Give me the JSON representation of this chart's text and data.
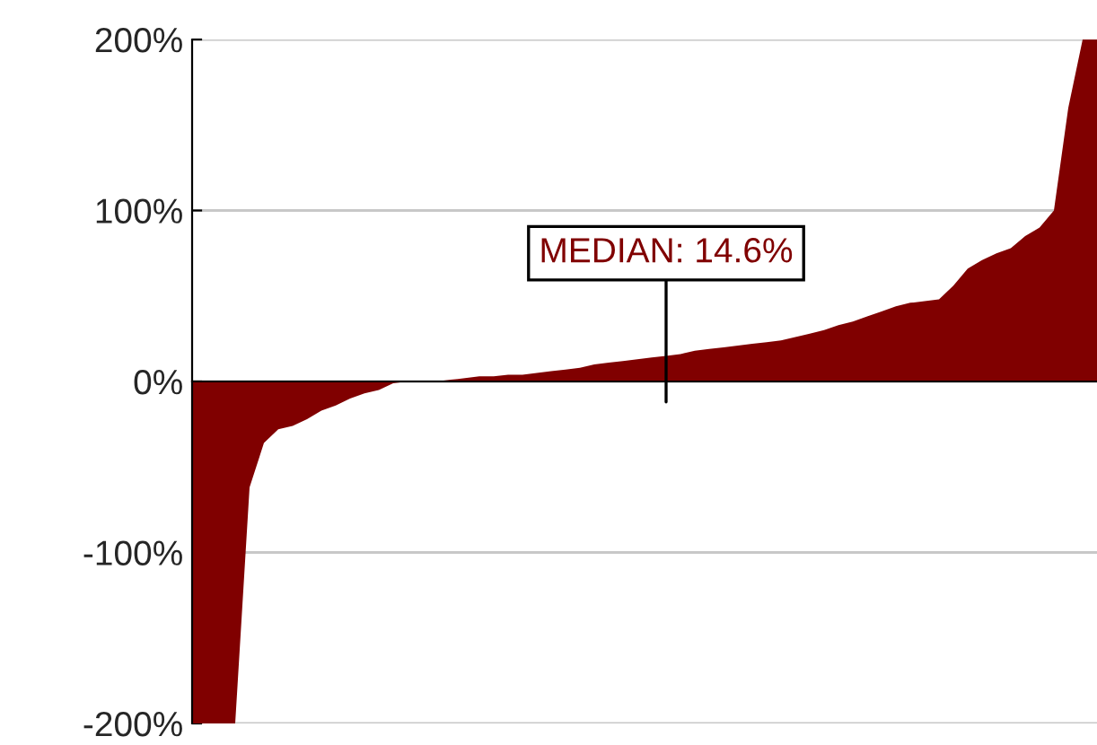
{
  "chart_data": {
    "type": "area",
    "categories": [
      null,
      null,
      null,
      null,
      null,
      null,
      null,
      null,
      null,
      null,
      null,
      null,
      null,
      null,
      null,
      null,
      null,
      null,
      null,
      null,
      null,
      null,
      null,
      null,
      null,
      null,
      null,
      null,
      null,
      null,
      null,
      null,
      null,
      null,
      null,
      null,
      null,
      null,
      null,
      null,
      null,
      null,
      null,
      null,
      null,
      null,
      null,
      null,
      null,
      null,
      null,
      null,
      null,
      null,
      null,
      null,
      null,
      null,
      null,
      null,
      null,
      null,
      null,
      null
    ],
    "series": [
      {
        "color": "#800000",
        "values": [
          -200,
          -200,
          -200,
          -200,
          -62,
          -36,
          -28,
          -26,
          -22,
          -17,
          -14,
          -10,
          -7,
          -5,
          -1,
          0,
          0,
          0,
          1,
          2,
          3,
          3,
          4,
          4,
          5,
          6,
          7,
          8,
          10,
          11,
          12,
          13,
          14,
          15,
          16,
          18,
          19,
          20,
          21,
          22,
          23,
          24,
          26,
          28,
          30,
          33,
          35,
          38,
          41,
          44,
          46,
          47,
          48,
          56,
          66,
          71,
          75,
          78,
          85,
          90,
          100,
          160,
          200,
          200
        ]
      }
    ],
    "ylim": [
      -200,
      200
    ],
    "yticks": [
      {
        "value": -200,
        "label": "-200%"
      },
      {
        "value": -100,
        "label": "-100%"
      },
      {
        "value": 0,
        "label": "0%"
      },
      {
        "value": 100,
        "label": "100%"
      },
      {
        "value": 200,
        "label": "200%"
      }
    ],
    "grid": "y",
    "annotations": [
      {
        "text": "MEDIAN: 14.6%",
        "y": 14.6
      }
    ]
  }
}
